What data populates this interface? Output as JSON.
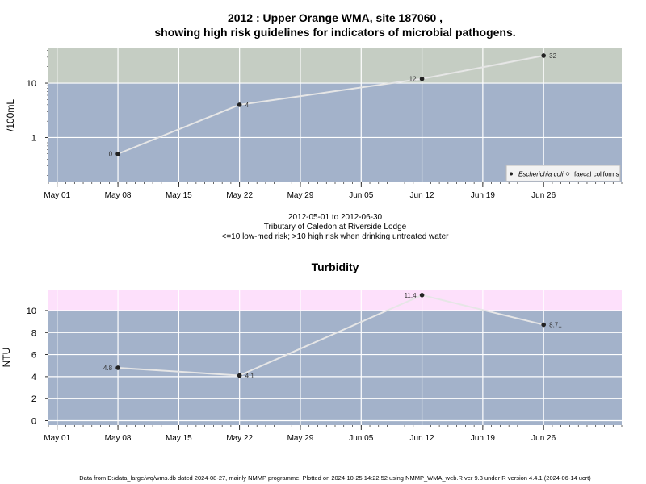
{
  "header": {
    "title_line1": "2012 : Upper Orange WMA, site 187060 ,",
    "title_line2": "showing high risk guidelines for indicators of microbial pathogens."
  },
  "subtitle": {
    "line1": "2012-05-01 to 2012-06-30",
    "line2": "Tributary of Caledon at Riverside Lodge",
    "line3": "<=10 low-med risk; >10 high risk when drinking untreated water"
  },
  "footer": {
    "text": "Data from D:/data_large/wq/wms.db dated 2024-08-27, mainly NMMP programme. Plotted on 2024-10-25 14:22:52 using NMMP_WMA_web.R ver 9.3 under R version 4.4.1 (2024-06-14 ucrt)"
  },
  "colors": {
    "low_band": "#a3b2ca",
    "high_band_ecoli": "#c5cdc3",
    "high_band_turbidity": "#fde0fb",
    "line": "#e6e6e6",
    "grid": "#ffffff",
    "point": "#222222"
  },
  "chart_data": [
    {
      "type": "line",
      "title": "",
      "ylabel": "/100mL",
      "y_scale": "log",
      "y_ticks": [
        "1",
        "10"
      ],
      "threshold": 10,
      "x_ticks": [
        "May 01",
        "May 08",
        "May 15",
        "May 22",
        "May 29",
        "Jun 05",
        "Jun 12",
        "Jun 19",
        "Jun 26"
      ],
      "x_range": [
        "2012-04-30",
        "2012-07-05"
      ],
      "ylim": [
        0.15,
        45
      ],
      "series": [
        {
          "name": "Escherichia coli",
          "x": [
            "2012-05-08",
            "2012-05-22",
            "2012-06-12",
            "2012-06-26"
          ],
          "y": [
            0.5,
            4,
            12,
            32
          ],
          "labels": [
            "0",
            "4",
            "12",
            "32"
          ]
        }
      ],
      "legend": {
        "position": "bottom-right",
        "entries": [
          "Escherichia coli",
          "faecal coliforms"
        ]
      }
    },
    {
      "type": "line",
      "title": "Turbidity",
      "ylabel": "NTU",
      "y_ticks": [
        "0",
        "2",
        "4",
        "6",
        "8",
        "10"
      ],
      "threshold": 10,
      "x_ticks": [
        "May 01",
        "May 08",
        "May 15",
        "May 22",
        "May 29",
        "Jun 05",
        "Jun 12",
        "Jun 19",
        "Jun 26"
      ],
      "x_range": [
        "2012-04-30",
        "2012-07-05"
      ],
      "ylim": [
        -0.4,
        11.9
      ],
      "series": [
        {
          "x": [
            "2012-05-08",
            "2012-05-22",
            "2012-06-12",
            "2012-06-26"
          ],
          "y": [
            4.8,
            4.1,
            11.4,
            8.71
          ],
          "labels": [
            "4.8",
            "4.1",
            "11.4",
            "8.71"
          ]
        }
      ]
    }
  ]
}
